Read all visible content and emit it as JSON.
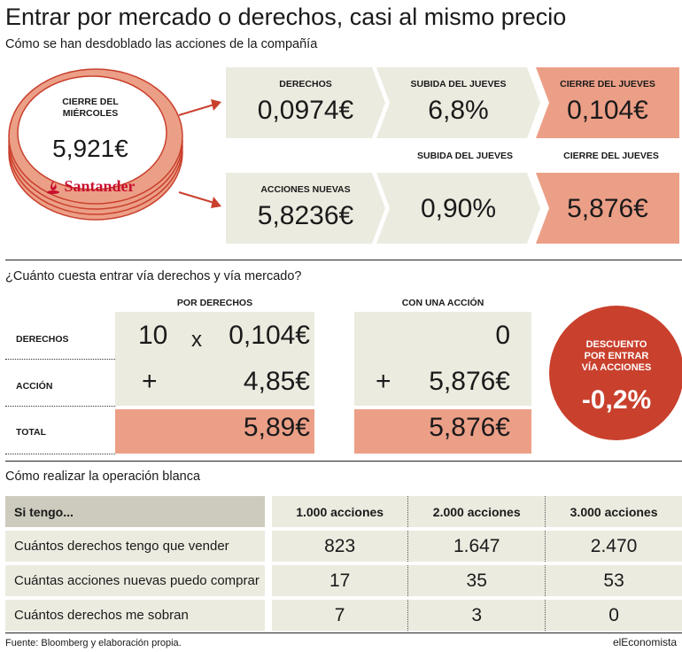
{
  "title": "Entrar por mercado o derechos, casi al mismo precio",
  "subtitle": "Cómo se han desdoblado las acciones de la compañía",
  "coin": {
    "label_line1": "CIERRE DEL",
    "label_line2": "MIÉRCOLES",
    "value": "5,921€",
    "brand": "Santander"
  },
  "row1": {
    "derechos": {
      "label": "DERECHOS",
      "value": "0,0974€"
    },
    "subida": {
      "label": "SUBIDA DEL JUEVES",
      "value": "6,8%"
    },
    "cierre": {
      "label": "CIERRE DEL JUEVES",
      "value": "0,104€"
    }
  },
  "row2": {
    "subida_label": "SUBIDA DEL JUEVES",
    "cierre_label": "CIERRE DEL JUEVES",
    "acciones": {
      "label": "ACCIONES NUEVAS",
      "value": "5,8236€"
    },
    "subida_value": "0,90%",
    "cierre_value": "5,876€"
  },
  "question": "¿Cuánto cuesta entrar vía derechos y vía mercado?",
  "compare": {
    "col1_header": "POR DERECHOS",
    "col2_header": "CON UNA ACCIÓN",
    "row_labels": [
      "DERECHOS",
      "ACCIÓN",
      "TOTAL"
    ],
    "der_qty": "10",
    "times": "x",
    "der_price": "0,104€",
    "plus": "+",
    "acc_price": "4,85€",
    "total1": "5,89€",
    "acc_col2_row1": "0",
    "acc_col2_row2": "5,876€",
    "total2": "5,876€"
  },
  "badge": {
    "line1": "DESCUENTO",
    "line2": "POR ENTRAR",
    "line3": "VÍA ACCIONES",
    "value": "-0,2%"
  },
  "operation_title": "Cómo realizar la operación blanca",
  "operation_table": {
    "header": [
      "Si tengo...",
      "1.000 acciones",
      "2.000 acciones",
      "3.000 acciones"
    ],
    "rows": [
      [
        "Cuántos derechos tengo que vender",
        "823",
        "1.647",
        "2.470"
      ],
      [
        "Cuántas acciones nuevas puedo comprar",
        "17",
        "35",
        "53"
      ],
      [
        "Cuántos derechos me sobran",
        "7",
        "3",
        "0"
      ]
    ]
  },
  "source": "Fuente: Bloomberg y elaboración propia.",
  "logo": "elEconomista",
  "colors": {
    "panel": "#ecebe0",
    "salmon": "#ec9f87",
    "badge": "#c9402d",
    "arrow": "#c9402d",
    "brand": "#c8102e"
  }
}
